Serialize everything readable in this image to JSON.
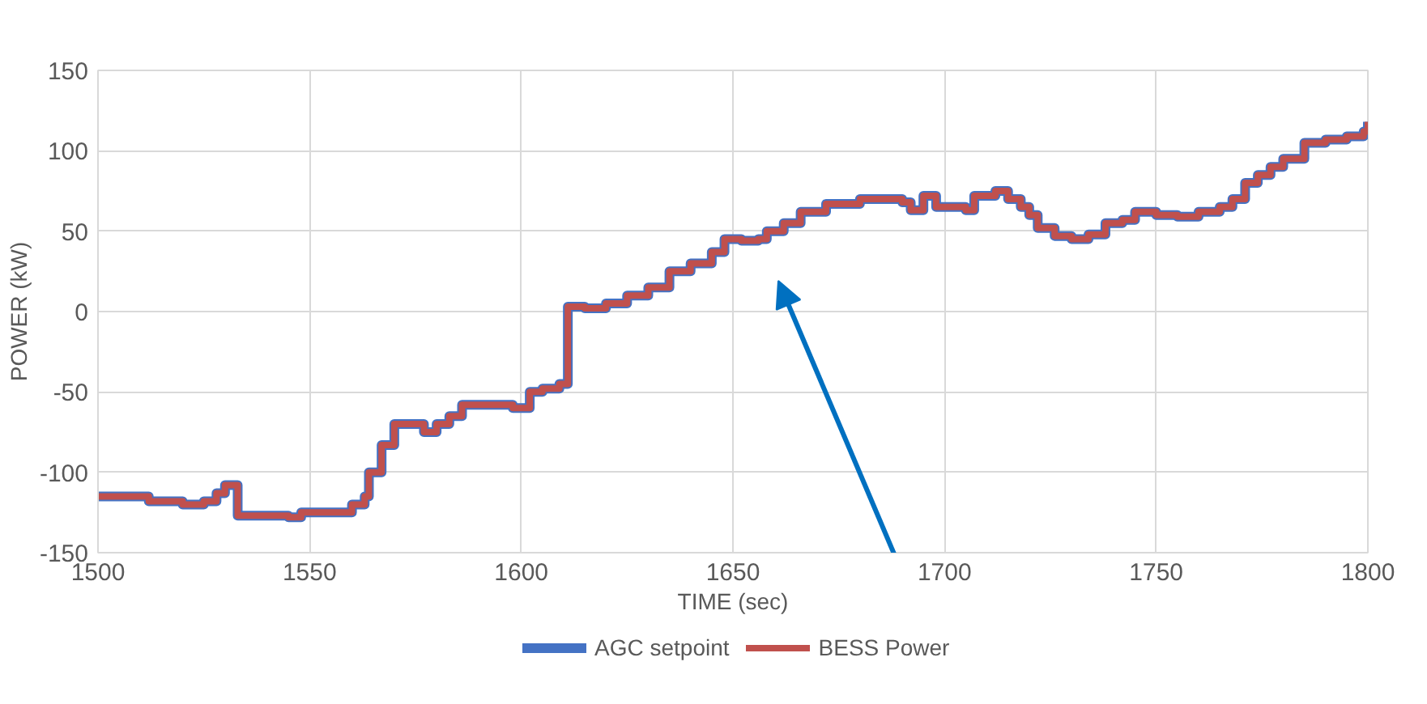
{
  "chart_data": {
    "type": "step",
    "xlabel": "TIME (sec)",
    "ylabel": "POWER (kW)",
    "x": [
      1500,
      1510,
      1512,
      1520,
      1525,
      1528,
      1530,
      1532,
      1533,
      1545,
      1548,
      1555,
      1560,
      1563,
      1564,
      1566,
      1567,
      1570,
      1575,
      1577,
      1580,
      1583,
      1586,
      1593,
      1598,
      1602,
      1605,
      1609,
      1611,
      1615,
      1620,
      1625,
      1630,
      1635,
      1640,
      1645,
      1648,
      1652,
      1656,
      1658,
      1662,
      1666,
      1672,
      1680,
      1690,
      1692,
      1695,
      1698,
      1705,
      1707,
      1712,
      1715,
      1718,
      1720,
      1722,
      1726,
      1730,
      1734,
      1738,
      1742,
      1745,
      1750,
      1755,
      1760,
      1765,
      1768,
      1771,
      1774,
      1777,
      1780,
      1785,
      1790,
      1795,
      1799,
      1800
    ],
    "series": [
      {
        "name": "AGC setpoint",
        "color": "#4472c4",
        "values": [
          -115,
          -115,
          -118,
          -120,
          -118,
          -113,
          -108,
          -108,
          -127,
          -128,
          -125,
          -125,
          -120,
          -115,
          -100,
          -100,
          -83,
          -70,
          -70,
          -75,
          -70,
          -65,
          -58,
          -58,
          -60,
          -50,
          -48,
          -45,
          3,
          2,
          5,
          10,
          15,
          25,
          30,
          37,
          45,
          44,
          45,
          50,
          55,
          62,
          67,
          70,
          68,
          63,
          72,
          65,
          63,
          72,
          75,
          70,
          65,
          60,
          52,
          47,
          45,
          48,
          55,
          57,
          62,
          60,
          59,
          62,
          65,
          70,
          80,
          85,
          90,
          95,
          105,
          107,
          109,
          112,
          118
        ]
      },
      {
        "name": "BESS Power",
        "color": "#c0504d",
        "values": [
          -115,
          -115,
          -118,
          -120,
          -118,
          -113,
          -108,
          -108,
          -127,
          -128,
          -125,
          -125,
          -120,
          -115,
          -100,
          -100,
          -83,
          -70,
          -70,
          -75,
          -70,
          -65,
          -58,
          -58,
          -60,
          -50,
          -48,
          -45,
          3,
          2,
          5,
          10,
          15,
          25,
          30,
          37,
          45,
          44,
          45,
          50,
          55,
          62,
          67,
          70,
          68,
          63,
          72,
          65,
          63,
          72,
          75,
          70,
          65,
          60,
          52,
          47,
          45,
          48,
          55,
          57,
          62,
          60,
          59,
          62,
          65,
          70,
          80,
          85,
          90,
          95,
          105,
          107,
          109,
          112,
          118
        ]
      }
    ],
    "xlim": [
      1500,
      1800
    ],
    "xticks": [
      1500,
      1550,
      1600,
      1650,
      1700,
      1750,
      1800
    ],
    "ylim": [
      -150,
      150
    ],
    "yticks": [
      -150,
      -100,
      -50,
      0,
      50,
      100,
      150
    ],
    "grid": true,
    "legend": "bottom"
  }
}
